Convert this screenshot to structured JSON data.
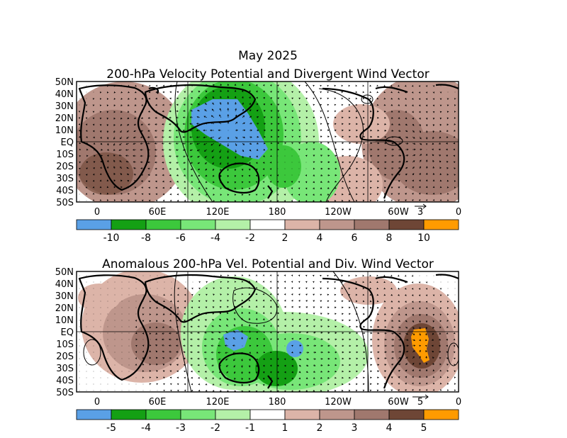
{
  "figure": {
    "title": "May 2025"
  },
  "panels": [
    {
      "title": "200-hPa Velocity Potential and Divergent Wind Vector",
      "lat_labels": [
        "50N",
        "40N",
        "30N",
        "20N",
        "10N",
        "EQ",
        "10S",
        "20S",
        "30S",
        "40S",
        "50S"
      ],
      "lon_labels": [
        "0",
        "60E",
        "120E",
        "180",
        "120W",
        "60W",
        "0"
      ],
      "ref_vector_label": "3",
      "colorbar": {
        "colors": [
          "#5aa0e6",
          "#14a014",
          "#3cc83c",
          "#78e678",
          "#b4f0a8",
          "#ffffff",
          "#dcb4a8",
          "#be968c",
          "#a0786e",
          "#6e4636",
          "#ff9b00"
        ],
        "labels": [
          "-10",
          "-8",
          "-6",
          "-4",
          "-2",
          "2",
          "4",
          "6",
          "8",
          "10"
        ]
      }
    },
    {
      "title": "Anomalous 200-hPa Vel. Potential and Div. Wind Vector",
      "lat_labels": [
        "50N",
        "40N",
        "30N",
        "20N",
        "10N",
        "EQ",
        "10S",
        "20S",
        "30S",
        "40S",
        "50S"
      ],
      "lon_labels": [
        "0",
        "60E",
        "120E",
        "180",
        "120W",
        "60W",
        "0"
      ],
      "ref_vector_label": "5",
      "colorbar": {
        "colors": [
          "#5aa0e6",
          "#14a014",
          "#3cc83c",
          "#78e678",
          "#b4f0a8",
          "#ffffff",
          "#dcb4a8",
          "#be968c",
          "#a0786e",
          "#6e4636",
          "#ff9b00"
        ],
        "labels": [
          "-5",
          "-4",
          "-3",
          "-2",
          "-1",
          "1",
          "2",
          "3",
          "4",
          "5"
        ]
      }
    }
  ]
}
